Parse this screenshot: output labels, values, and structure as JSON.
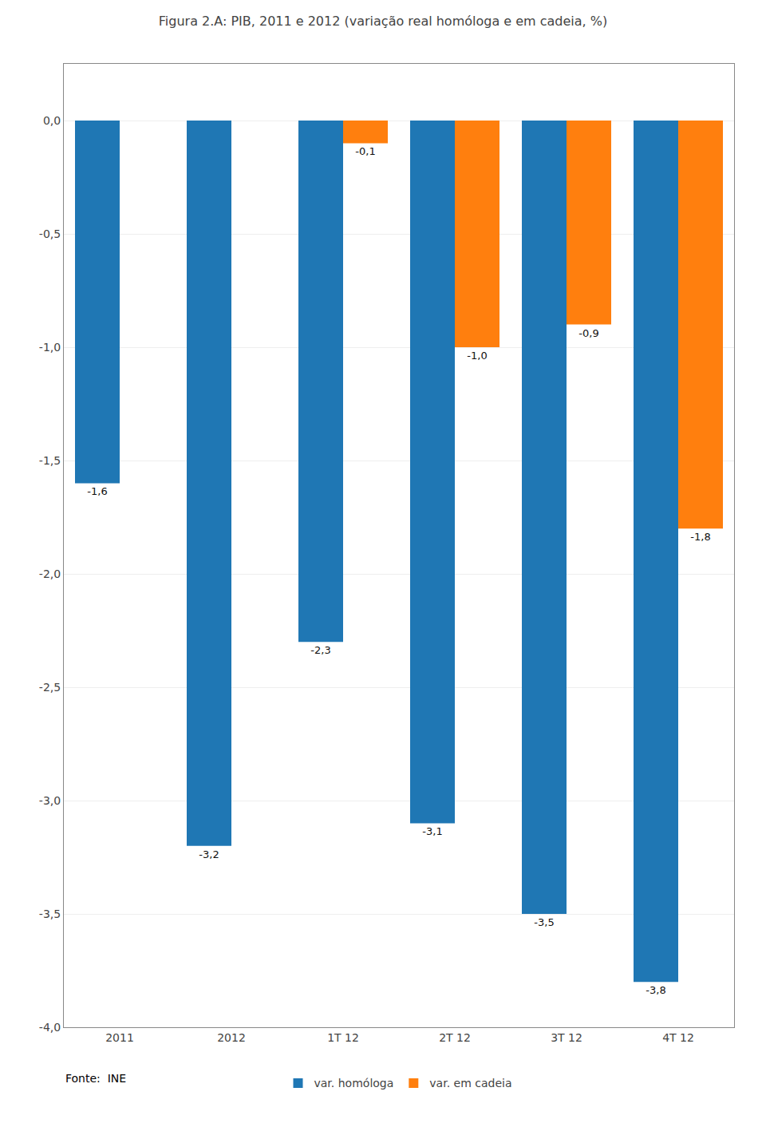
{
  "chart_data": {
    "type": "bar",
    "title": "Figura 2.A: PIB, 2011 e 2012 (variação real homóloga e em cadeia, %)",
    "categories": [
      "2011",
      "2012",
      "1T 12",
      "2T 12",
      "3T 12",
      "4T 12"
    ],
    "series": [
      {
        "name": "var. homóloga",
        "values": [
          -1.6,
          -3.2,
          -2.3,
          -3.1,
          -3.5,
          -3.8
        ],
        "value_labels": [
          "-1,6",
          "-3,2",
          "-2,3",
          "-3,1",
          "-3,5",
          "-3,8"
        ]
      },
      {
        "name": "var. em cadeia",
        "values": [
          null,
          null,
          -0.1,
          -1.0,
          -0.9,
          -1.8
        ],
        "value_labels": [
          null,
          null,
          "-0,1",
          "-1,0",
          "-0,9",
          "-1,8"
        ]
      }
    ],
    "ylim": [
      -4.0,
      0.25
    ],
    "yticks": [
      {
        "value": 0.0,
        "label": "0,0"
      },
      {
        "value": -0.5,
        "label": "-0,5"
      },
      {
        "value": -1.0,
        "label": "-1,0"
      },
      {
        "value": -1.5,
        "label": "-1,5"
      },
      {
        "value": -2.0,
        "label": "-2,0"
      },
      {
        "value": -2.5,
        "label": "-2,5"
      },
      {
        "value": -3.0,
        "label": "-3,0"
      },
      {
        "value": -3.5,
        "label": "-3,5"
      },
      {
        "value": -4.0,
        "label": "-4,0"
      }
    ],
    "grid": true,
    "legend": "bottom",
    "data_labels": true,
    "annotations": [
      {
        "text": "Fonte:  INE"
      }
    ]
  }
}
